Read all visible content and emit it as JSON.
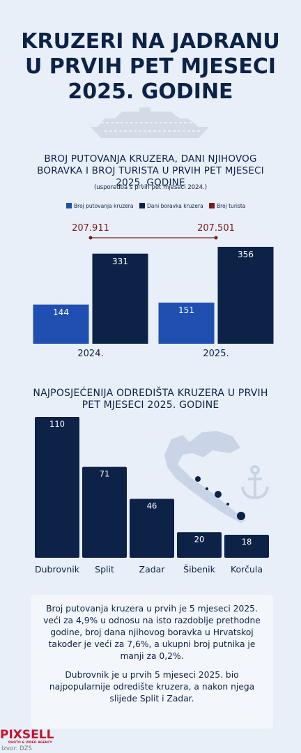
{
  "header": {
    "title": [
      "KRUZERI NA JADRANU",
      "U PRVIH PET MJESECI",
      "2025. GODINE"
    ]
  },
  "chart_data": [
    {
      "type": "bar",
      "title": "BROJ PUTOVANJA KRUZERA, DANI NJIHOVOG BORAVKA I BROJ TURISTA U PRVIH PET MJESECI 2025. GODINE",
      "subtitle": "(usporedba s prvih pet mjeseci 2024.)",
      "categories": [
        "2024.",
        "2025."
      ],
      "series": [
        {
          "name": "Broj putovanja kruzera",
          "color": "#1f4fb0",
          "values": [
            144,
            151
          ]
        },
        {
          "name": "Dani boravka kruzera",
          "color": "#0c2247",
          "values": [
            331,
            356
          ]
        },
        {
          "name": "Broj turista",
          "color": "#7a1c1c",
          "values": [
            207911,
            207501
          ],
          "value_labels": [
            "207.911",
            "207.501"
          ]
        }
      ]
    },
    {
      "type": "bar",
      "title": "NAJPOSJEĆENIJA ODREDIŠTA KRUZERA U PRVIH PET MJESECI 2025. GODINE",
      "categories": [
        "Dubrovnik",
        "Split",
        "Zadar",
        "Šibenik",
        "Korčula"
      ],
      "values": [
        110,
        71,
        46,
        20,
        18
      ],
      "color": "#0c2247"
    }
  ],
  "note": {
    "paragraphs": [
      "Broj putovanja kruzera u prvih je 5 mjeseci 2025. veći za 4,9% u odnosu na isto razdoblje prethodne godine, broj dana njihovog boravka u Hrvatskoj također je veći za 7,6%, a ukupni broj putnika je manji za 0,2%.",
      "Dubrovnik je u prvih 5 mjeseci 2025. bio najpopularnije odredište kruzera, a nakon njega slijede Split i Zadar."
    ]
  },
  "footer": {
    "logo": "PIXSELL",
    "tagline": "PHOTO & VIDEO AGENCY",
    "source": "Izvor: DZS"
  }
}
